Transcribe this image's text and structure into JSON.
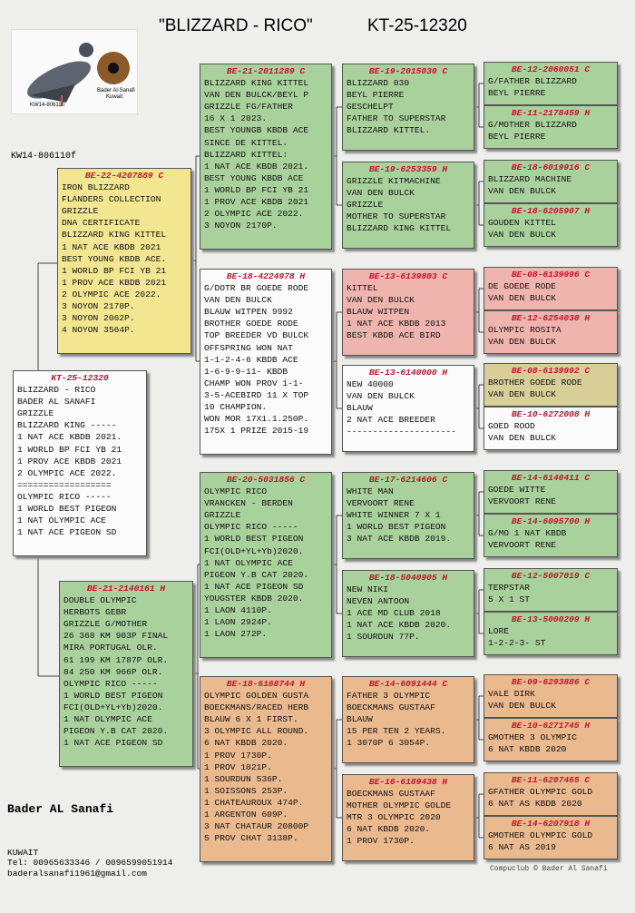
{
  "header": {
    "title": "\"BLIZZARD - RICO\"",
    "ring": "KT-25-12320"
  },
  "photo": {
    "owner": "Bader Al-Sanafi",
    "country": "Kuwait",
    "ring": "KW14-806110"
  },
  "photo_code": "KW14-806110f",
  "subject": {
    "ring": "KT-25-12320",
    "lines": [
      "BLIZZARD - RICO",
      "BADER AL SANAFI",
      "GRIZZLE",
      "BLIZZARD KING -----",
      "1 NAT ACE KBDB 2021.",
      "1 WORLD BP FCI YB 21",
      "1 PROV ACE KBDB 2021",
      "2 OLYMPIC ACE 2022.",
      "==================",
      "OLYMPIC RICO -----",
      "1 WORLD BEST PIGEON",
      "1 NAT OLYMPIC ACE",
      "1 NAT ACE PIGEON SD"
    ]
  },
  "sire": {
    "ring": "BE-22-4207889 C",
    "lines": [
      "IRON BLIZZARD",
      "FLANDERS COLLECTION",
      "GRIZZLE",
      "DNA CERTIFICATE",
      "BLIZZARD KING KITTEL",
      "1 NAT ACE KBDB 2021",
      "BEST YOUNG KBDB ACE.",
      "1 WORLD BP FCI YB 21",
      "1 PROV ACE KBDB 2021",
      "2 OLYMPIC ACE 2022.",
      "3 NOYON 2170P.",
      "3 NOYON 2062P.",
      "4 NOYON 3564P."
    ]
  },
  "dam": {
    "ring": "BE-21-2140161 H",
    "lines": [
      "DOUBLE OLYMPIC",
      "HERBOTS GEBR",
      "GRIZZLE G/MOTHER",
      "26 368 KM 903P FINAL",
      "MIRA PORTUGAL OLR.",
      "61 199 KM 1787P OLR.",
      "84 250 KM 966P OLR.",
      "OLYMPIC RICO -----",
      "1 WORLD BEST PIGEON",
      "FCI(OLD+YL+Yb)2020.",
      "1 NAT OLYMPIC ACE",
      "PIGEON Y.B CAT 2020.",
      "1 NAT ACE PIGEON SD"
    ]
  },
  "generation3": [
    {
      "ring": "BE-21-2011289 C",
      "lines": [
        "BLIZZARD KING KITTEL",
        "VAN DEN BULCK/BEYL P",
        "GRIZZLE FG/FATHER",
        "16 X 1 2023.",
        "BEST YOUNGB KBDB ACE",
        "SINCE DE KITTEL.",
        "BLIZZARD KITTEL:",
        "1 NAT ACE KBDB 2021.",
        "BEST YOUNG KBDB ACE",
        "1 WORLD BP FCI YB 21",
        "1 PROV ACE KBDB 2021",
        "2 OLYMPIC ACE 2022.",
        "3 NOYON 2170P."
      ]
    },
    {
      "ring": "BE-18-4224978 H",
      "lines": [
        "G/DOTR BR GOEDE RODE",
        "VAN DEN BULCK",
        "BLAUW WITPEN 9992",
        "BROTHER GOEDE RODE",
        "TOP BREEDER VD BULCK",
        "OFFSPRING WON NAT",
        "1-1-2-4-6 KBDB ACE",
        "1-6-9-9-11- KBDB",
        "CHAMP WON PROV 1-1-",
        "3-5-ACEBIRD 11 X TOP",
        "10 CHAMPION.",
        "WON MOR 17X1.1.250P.",
        "175X 1 PRIZE 2015-19"
      ]
    },
    {
      "ring": "BE-20-5031856 C",
      "lines": [
        "OLYMPIC RICO",
        "VRANCKEN - BERDEN",
        "GRIZZLE",
        "OLYMPIC RICO -----",
        "1 WORLD BEST PIGEON",
        "FCI(OLD+YL+Yb)2020.",
        "1 NAT OLYMPIC ACE",
        "PIGEON Y.B CAT 2020.",
        "1 NAT ACE PIGEON SD",
        "YOUGSTER KBDB 2020.",
        "1 LAON 4110P.",
        "1 LAON 2924P.",
        "1 LAON 272P."
      ]
    },
    {
      "ring": "BE-18-6168744 H",
      "lines": [
        "OLYMPIC GOLDEN GUSTA",
        "BOECKMANS/RACED HERB",
        "BLAUW 6 X 1 FIRST.",
        "3 OLYMPIC ALL ROUND.",
        "6 NAT KBDB 2020.",
        "1 PROV 1730P.",
        "1 PROV 1021P.",
        "1 SOURDUN 536P.",
        "1 SOISSONS 253P.",
        "1 CHATEAUROUX 474P.",
        "1 ARGENTON 609P.",
        "3 NAT CHATAUR 20800P",
        "5 PROV CHAT 3138P."
      ]
    }
  ],
  "generation4": [
    {
      "ring": "BE-19-2015030 C",
      "lines": [
        "BLIZZARD 030",
        "BEYL PIERRE",
        "GESCHELPT",
        "FATHER TO SUPERSTAR",
        "BLIZZARD KITTEL."
      ]
    },
    {
      "ring": "BE-19-6253359 H",
      "lines": [
        "GRIZZLE KITMACHINE",
        "VAN DEN BULCK",
        "GRIZZLE",
        "MOTHER TO SUPERSTAR",
        "BLIZZARD KING KITTEL"
      ]
    },
    {
      "ring": "BE-13-6139803 C",
      "lines": [
        "KITTEL",
        "VAN DEN BULCK",
        "BLAUW WITPEN",
        "1 NAT ACE KBDB 2013",
        "BEST KBDB ACE BIRD"
      ]
    },
    {
      "ring": "BE-13-6140000 H",
      "lines": [
        "NEW 40000",
        "VAN DEN BULCK",
        "BLAUW",
        "2 NAT ACE BREEDER",
        "---------------------"
      ]
    },
    {
      "ring": "BE-17-6214606 C",
      "lines": [
        "WHITE MAN",
        "VERVOORT RENE",
        "WHITE WINNER 7 X 1",
        "1 WORLD BEST PIGEON",
        "3 NAT ACE KBDB 2019."
      ]
    },
    {
      "ring": "BE-18-5040905 H",
      "lines": [
        "NEW NIKI",
        "NEVEN ANTOON",
        "1 ACE MD CLUB 2018",
        "1 NAT ACE KBDB 2020.",
        "1 SOURDUN 77P."
      ]
    },
    {
      "ring": "BE-14-6091444 C",
      "lines": [
        "FATHER 3 OLYMPIC",
        "BOECKMANS GUSTAAF",
        "BLAUW",
        "15 PER TEN 2 YEARS.",
        "1 3070P 6 3054P."
      ]
    },
    {
      "ring": "BE-16-6189438 H",
      "lines": [
        "BOECKMANS GUSTAAF",
        "MOTHER OLYMPIC GOLDE",
        "MTR 3 OLYMPIC 2020",
        "6 NAT KBDB 2020.",
        "1 PROV 1730P."
      ]
    }
  ],
  "generation5": [
    {
      "ring": "BE-12-2060051 C",
      "lines": [
        "G/FATHER BLIZZARD",
        "BEYL PIERRE"
      ]
    },
    {
      "ring": "BE-11-2178459 H",
      "lines": [
        "G/MOTHER BLIZZARD",
        "BEYL PIERRE"
      ]
    },
    {
      "ring": "BE-18-6019916 C",
      "lines": [
        "BLIZZARD MACHINE",
        "VAN DEN BULCK"
      ]
    },
    {
      "ring": "BE-18-6205907 H",
      "lines": [
        "GOUDEN KITTEL",
        "VAN DEN BULCK"
      ]
    },
    {
      "ring": "BE-08-6139996 C",
      "lines": [
        "DE GOEDE RODE",
        "VAN DEN BULCK"
      ]
    },
    {
      "ring": "BE-12-6254038 H",
      "lines": [
        "OLYMPIC ROSITA",
        "VAN DEN BULCK"
      ]
    },
    {
      "ring": "BE-08-6139992 C",
      "lines": [
        "BROTHER GOEDE RODE",
        "VAN DEN BULCK"
      ]
    },
    {
      "ring": "BE-10-6272008 H",
      "lines": [
        "GOED ROOD",
        "VAN DEN BULCK"
      ]
    },
    {
      "ring": "BE-14-6140411 C",
      "lines": [
        "GOEDE WITTE",
        "VERVOORT RENE"
      ]
    },
    {
      "ring": "BE-14-6095700 H",
      "lines": [
        "G/MO 1 NAT KBDB",
        "VERVOORT RENE"
      ]
    },
    {
      "ring": "BE-12-5007019 C",
      "lines": [
        "TERPSTAR",
        "5 X 1 ST"
      ]
    },
    {
      "ring": "BE-13-5000209 H",
      "lines": [
        "LORE",
        "1-2-2-3- ST"
      ]
    },
    {
      "ring": "BE-09-6293886 C",
      "lines": [
        "VALE DIRK",
        "VAN DEN BULCK"
      ]
    },
    {
      "ring": "BE-10-6271745 H",
      "lines": [
        "GMOTHER 3 OLYMPIC",
        "6 NAT KBDB 2020"
      ]
    },
    {
      "ring": "BE-11-6207465 C",
      "lines": [
        "GFATHER OLYMPIC GOLD",
        "6 NAT AS KBDB 2020"
      ]
    },
    {
      "ring": "BE-14-6207918 H",
      "lines": [
        "GMOTHER OLYMPIC GOLD",
        "6 NAT AS 2019"
      ]
    }
  ],
  "footer": {
    "name": "Bader AL Sanafi",
    "country": "KUWAIT",
    "phone": "Tel: 00965633346 / 0096599051914",
    "email": "baderalsanafi1961@gmail.com",
    "credit": "Compuclub © Bader Al Sanafi"
  }
}
